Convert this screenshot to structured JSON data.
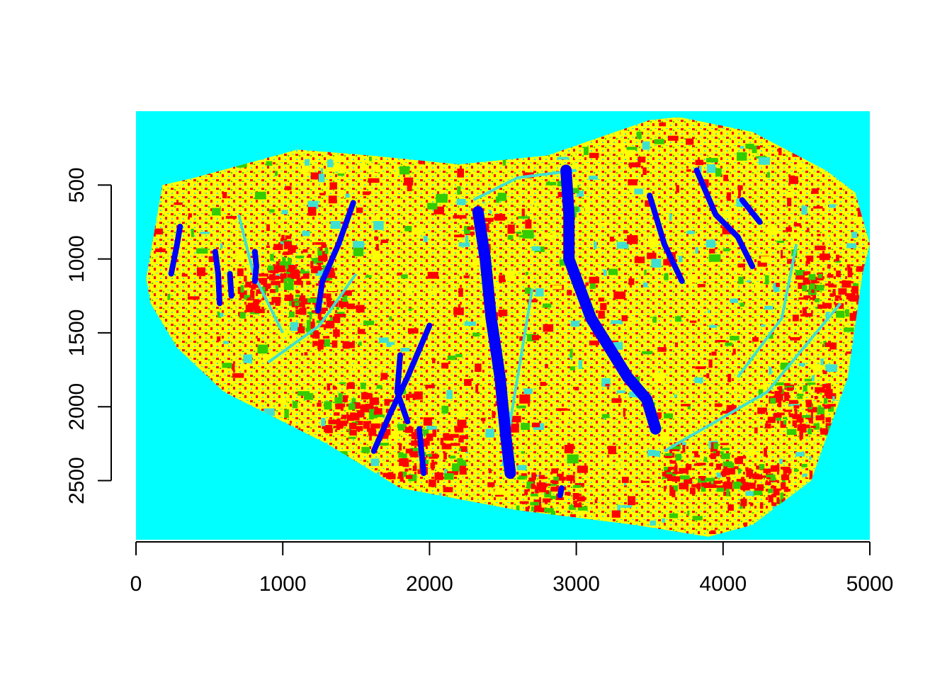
{
  "chart_data": {
    "type": "heatmap",
    "title": "",
    "xlabel": "",
    "ylabel": "",
    "xlim": [
      0,
      5000
    ],
    "ylim": [
      2900,
      0
    ],
    "x_ticks": [
      0,
      1000,
      2000,
      3000,
      4000,
      5000
    ],
    "y_ticks": [
      500,
      1000,
      1500,
      2000,
      2500
    ],
    "x_tick_labels": [
      "0",
      "1000",
      "2000",
      "3000",
      "4000",
      "5000"
    ],
    "y_tick_labels": [
      "500",
      "1000",
      "1500",
      "2000",
      "2500"
    ],
    "grid": false,
    "legend": "none",
    "colors": {
      "background": "#00ffff",
      "water": "#0000ff",
      "class_yellow": "#ffff00",
      "class_red": "#ff0000",
      "class_green": "#33cc00",
      "class_cyan": "#40e0d0"
    },
    "region_outline": [
      [
        70,
        1130
      ],
      [
        180,
        500
      ],
      [
        400,
        450
      ],
      [
        1100,
        260
      ],
      [
        1600,
        300
      ],
      [
        2200,
        360
      ],
      [
        2800,
        300
      ],
      [
        3500,
        60
      ],
      [
        3700,
        40
      ],
      [
        4200,
        140
      ],
      [
        4700,
        400
      ],
      [
        4900,
        550
      ],
      [
        5000,
        900
      ],
      [
        4950,
        1100
      ],
      [
        4850,
        1800
      ],
      [
        4600,
        2500
      ],
      [
        4200,
        2800
      ],
      [
        3900,
        2880
      ],
      [
        3400,
        2800
      ],
      [
        2600,
        2700
      ],
      [
        1800,
        2550
      ],
      [
        1300,
        2250
      ],
      [
        600,
        1900
      ],
      [
        280,
        1600
      ],
      [
        100,
        1300
      ]
    ],
    "lakes": [
      [
        [
          300,
          780
        ],
        [
          280,
          900
        ],
        [
          240,
          1100
        ]
      ],
      [
        [
          540,
          950
        ],
        [
          560,
          1100
        ],
        [
          570,
          1300
        ]
      ],
      [
        [
          640,
          1100
        ],
        [
          650,
          1250
        ]
      ],
      [
        [
          810,
          950
        ],
        [
          820,
          1050
        ],
        [
          810,
          1150
        ]
      ],
      [
        [
          1480,
          620
        ],
        [
          1380,
          900
        ],
        [
          1270,
          1150
        ],
        [
          1240,
          1350
        ]
      ],
      [
        [
          2000,
          1450
        ],
        [
          1850,
          1800
        ],
        [
          1730,
          2050
        ],
        [
          1620,
          2300
        ]
      ],
      [
        [
          1800,
          1650
        ],
        [
          1780,
          1900
        ],
        [
          1850,
          2100
        ]
      ],
      [
        [
          1930,
          2150
        ],
        [
          1960,
          2450
        ]
      ],
      [
        [
          2330,
          680
        ],
        [
          2380,
          1000
        ],
        [
          2420,
          1400
        ],
        [
          2480,
          1800
        ],
        [
          2520,
          2200
        ],
        [
          2550,
          2450
        ]
      ],
      [
        [
          2930,
          400
        ],
        [
          2950,
          700
        ],
        [
          2950,
          1000
        ],
        [
          3100,
          1400
        ],
        [
          3350,
          1800
        ],
        [
          3480,
          1950
        ],
        [
          3540,
          2150
        ]
      ],
      [
        [
          3500,
          570
        ],
        [
          3600,
          900
        ],
        [
          3720,
          1150
        ]
      ],
      [
        [
          3820,
          400
        ],
        [
          3950,
          700
        ],
        [
          4100,
          850
        ],
        [
          4200,
          1050
        ]
      ],
      [
        [
          4130,
          600
        ],
        [
          4250,
          750
        ]
      ],
      [
        [
          2900,
          2550
        ],
        [
          2890,
          2600
        ]
      ]
    ]
  }
}
